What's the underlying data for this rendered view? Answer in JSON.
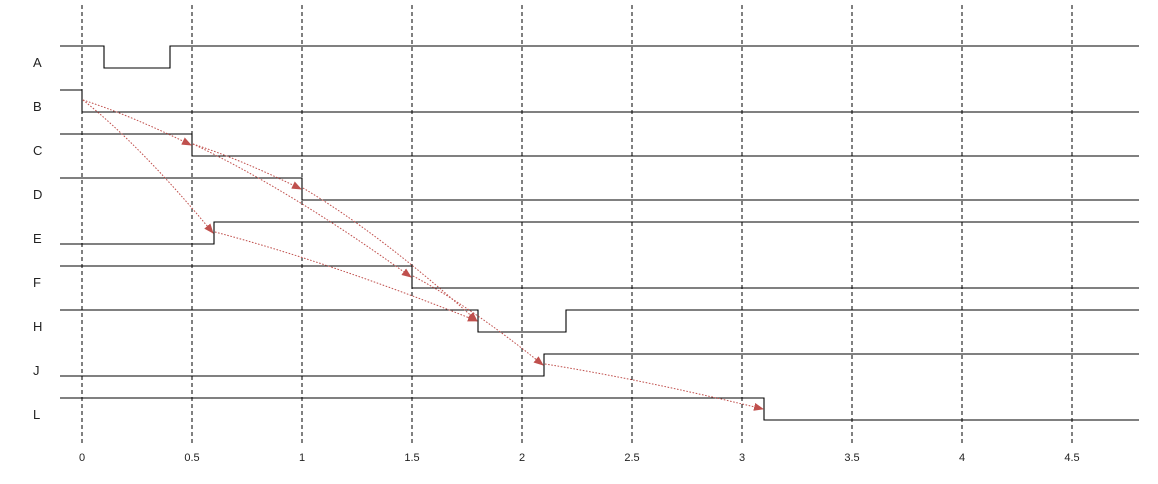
{
  "x_ticks": [
    "0",
    "0.5",
    "1",
    "1.5",
    "2",
    "2.5",
    "3",
    "3.5",
    "4",
    "4.5"
  ],
  "time_range": [
    -0.1,
    4.83
  ],
  "signals": [
    {
      "name": "A",
      "initial": 1,
      "edges": [
        0.1,
        0.4
      ]
    },
    {
      "name": "B",
      "initial": 1,
      "edges": [
        0
      ]
    },
    {
      "name": "C",
      "initial": 1,
      "edges": [
        0.5
      ]
    },
    {
      "name": "D",
      "initial": 1,
      "edges": [
        1.0
      ]
    },
    {
      "name": "E",
      "initial": 0,
      "edges": [
        0.6
      ]
    },
    {
      "name": "F",
      "initial": 1,
      "edges": [
        1.5
      ]
    },
    {
      "name": "H",
      "initial": 1,
      "edges": [
        1.8,
        2.2
      ]
    },
    {
      "name": "J",
      "initial": 0,
      "edges": [
        2.1
      ]
    },
    {
      "name": "L",
      "initial": 1,
      "edges": [
        3.1
      ]
    }
  ],
  "dependency_arrows": [
    {
      "from": "B",
      "to": "C"
    },
    {
      "from": "B",
      "to": "E"
    },
    {
      "from": "C",
      "to": "D"
    },
    {
      "from": "C",
      "to": "F"
    },
    {
      "from": "D",
      "to": "H"
    },
    {
      "from": "E",
      "to": "H"
    },
    {
      "from": "F",
      "to": "J"
    },
    {
      "from": "J",
      "to": "L"
    }
  ],
  "colors": {
    "wave": "#000000",
    "grid": "#000000",
    "arrow": "#c0504d"
  }
}
